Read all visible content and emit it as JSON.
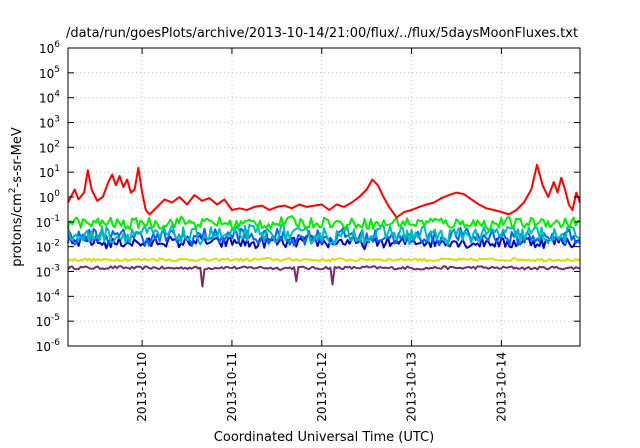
{
  "chart_data": {
    "type": "line",
    "title": "/data/run/goesPlots/archive/2013-10-14/21:00/flux/../flux/5daysMoonFluxes.txt",
    "xlabel": "Coordinated Universal Time (UTC)",
    "ylabel_parts": [
      "protons/cm",
      "2",
      "-s-sr-MeV"
    ],
    "y_scale": "log",
    "ylim": [
      1e-06,
      1000000.0
    ],
    "y_ticks": [
      {
        "value": 1e-06,
        "base": "10",
        "exp": "-6"
      },
      {
        "value": 1e-05,
        "base": "10",
        "exp": "-5"
      },
      {
        "value": 0.0001,
        "base": "10",
        "exp": "-4"
      },
      {
        "value": 0.001,
        "base": "10",
        "exp": "-3"
      },
      {
        "value": 0.01,
        "base": "10",
        "exp": "-2"
      },
      {
        "value": 0.1,
        "base": "10",
        "exp": "-1"
      },
      {
        "value": 1,
        "base": "10",
        "exp": "0"
      },
      {
        "value": 10,
        "base": "10",
        "exp": "1"
      },
      {
        "value": 100,
        "base": "10",
        "exp": "2"
      },
      {
        "value": 1000,
        "base": "10",
        "exp": "3"
      },
      {
        "value": 10000,
        "base": "10",
        "exp": "4"
      },
      {
        "value": 100000,
        "base": "10",
        "exp": "5"
      },
      {
        "value": 1000000,
        "base": "10",
        "exp": "6"
      }
    ],
    "xlim": [
      "2013-10-09T04:12",
      "2013-10-14T21:00"
    ],
    "x_ticks": [
      {
        "value": "2013-10-10T00:00",
        "label": "2013-10-10"
      },
      {
        "value": "2013-10-11T00:00",
        "label": "2013-10-11"
      },
      {
        "value": "2013-10-12T00:00",
        "label": "2013-10-12"
      },
      {
        "value": "2013-10-13T00:00",
        "label": "2013-10-13"
      },
      {
        "value": "2013-10-14T00:00",
        "label": "2013-10-14"
      }
    ],
    "grid": true,
    "legend": "none",
    "series": [
      {
        "color": "#ff0000",
        "points": [
          [
            "2013-10-09T04:12",
            0.6
          ],
          [
            "2013-10-09T06:00",
            2
          ],
          [
            "2013-10-09T07:00",
            0.8
          ],
          [
            "2013-10-09T08:30",
            1.5
          ],
          [
            "2013-10-09T09:30",
            12
          ],
          [
            "2013-10-09T10:30",
            2
          ],
          [
            "2013-10-09T12:00",
            0.7
          ],
          [
            "2013-10-09T13:30",
            1
          ],
          [
            "2013-10-09T15:00",
            4
          ],
          [
            "2013-10-09T16:00",
            8
          ],
          [
            "2013-10-09T17:00",
            3
          ],
          [
            "2013-10-09T18:00",
            7
          ],
          [
            "2013-10-09T19:00",
            2.5
          ],
          [
            "2013-10-09T20:00",
            5
          ],
          [
            "2013-10-09T21:00",
            1.5
          ],
          [
            "2013-10-09T22:00",
            2
          ],
          [
            "2013-10-09T23:00",
            15
          ],
          [
            "2013-10-10T00:00",
            1.5
          ],
          [
            "2013-10-10T01:00",
            0.3
          ],
          [
            "2013-10-10T02:00",
            0.2
          ],
          [
            "2013-10-10T04:00",
            0.4
          ],
          [
            "2013-10-10T06:00",
            0.8
          ],
          [
            "2013-10-10T08:00",
            0.6
          ],
          [
            "2013-10-10T10:00",
            1
          ],
          [
            "2013-10-10T12:00",
            0.5
          ],
          [
            "2013-10-10T14:00",
            1.2
          ],
          [
            "2013-10-10T16:00",
            0.7
          ],
          [
            "2013-10-10T18:00",
            0.9
          ],
          [
            "2013-10-10T20:00",
            0.5
          ],
          [
            "2013-10-10T22:00",
            0.8
          ],
          [
            "2013-10-11T00:00",
            0.3
          ],
          [
            "2013-10-11T02:00",
            0.35
          ],
          [
            "2013-10-11T04:00",
            0.3
          ],
          [
            "2013-10-11T06:00",
            0.4
          ],
          [
            "2013-10-11T08:00",
            0.45
          ],
          [
            "2013-10-11T10:00",
            0.3
          ],
          [
            "2013-10-11T12:00",
            0.4
          ],
          [
            "2013-10-11T14:00",
            0.45
          ],
          [
            "2013-10-11T16:00",
            0.35
          ],
          [
            "2013-10-11T18:00",
            0.5
          ],
          [
            "2013-10-11T20:00",
            0.4
          ],
          [
            "2013-10-11T22:00",
            0.45
          ],
          [
            "2013-10-12T00:00",
            0.5
          ],
          [
            "2013-10-12T02:00",
            0.3
          ],
          [
            "2013-10-12T04:00",
            0.5
          ],
          [
            "2013-10-12T06:00",
            0.4
          ],
          [
            "2013-10-12T08:00",
            0.6
          ],
          [
            "2013-10-12T10:00",
            1
          ],
          [
            "2013-10-12T12:00",
            2
          ],
          [
            "2013-10-12T13:30",
            5
          ],
          [
            "2013-10-12T15:00",
            3
          ],
          [
            "2013-10-12T16:30",
            1
          ],
          [
            "2013-10-12T18:00",
            0.4
          ],
          [
            "2013-10-12T20:00",
            0.15
          ],
          [
            "2013-10-12T22:00",
            0.25
          ],
          [
            "2013-10-13T00:00",
            0.3
          ],
          [
            "2013-10-13T02:00",
            0.4
          ],
          [
            "2013-10-13T04:00",
            0.5
          ],
          [
            "2013-10-13T06:00",
            0.6
          ],
          [
            "2013-10-13T08:00",
            0.9
          ],
          [
            "2013-10-13T10:00",
            1.2
          ],
          [
            "2013-10-13T12:00",
            1.5
          ],
          [
            "2013-10-13T14:00",
            1.3
          ],
          [
            "2013-10-13T16:00",
            0.8
          ],
          [
            "2013-10-13T18:00",
            0.5
          ],
          [
            "2013-10-13T20:00",
            0.35
          ],
          [
            "2013-10-13T22:00",
            0.3
          ],
          [
            "2013-10-14T00:00",
            0.25
          ],
          [
            "2013-10-14T02:00",
            0.2
          ],
          [
            "2013-10-14T04:00",
            0.3
          ],
          [
            "2013-10-14T06:00",
            0.6
          ],
          [
            "2013-10-14T08:00",
            2
          ],
          [
            "2013-10-14T09:30",
            20
          ],
          [
            "2013-10-14T11:00",
            3
          ],
          [
            "2013-10-14T12:30",
            1
          ],
          [
            "2013-10-14T14:00",
            4
          ],
          [
            "2013-10-14T15:00",
            1.5
          ],
          [
            "2013-10-14T16:00",
            6
          ],
          [
            "2013-10-14T17:00",
            2
          ],
          [
            "2013-10-14T18:00",
            0.5
          ],
          [
            "2013-10-14T19:00",
            0.3
          ],
          [
            "2013-10-14T20:00",
            1.5
          ],
          [
            "2013-10-14T21:00",
            0.6
          ]
        ]
      },
      {
        "color": "#00ee00",
        "base": 0.09,
        "amp": 0.22,
        "spikes": []
      },
      {
        "color": "#00bbbb",
        "base": 0.03,
        "amp": 0.35,
        "spikes": []
      },
      {
        "color": "#0066ff",
        "base": 0.025,
        "amp": 0.3,
        "spikes": []
      },
      {
        "color": "#0000cc",
        "base": 0.015,
        "amp": 0.22,
        "spikes": []
      },
      {
        "color": "#dddd00",
        "base": 0.003,
        "amp": 0.06,
        "spikes": []
      },
      {
        "color": "#7a2a6e",
        "base": 0.0014,
        "amp": 0.06,
        "spikes": [
          [
            "2013-10-10T16:00",
            0.00025
          ],
          [
            "2013-10-11T17:00",
            0.0004
          ],
          [
            "2013-10-12T03:00",
            0.0003
          ]
        ]
      }
    ]
  }
}
